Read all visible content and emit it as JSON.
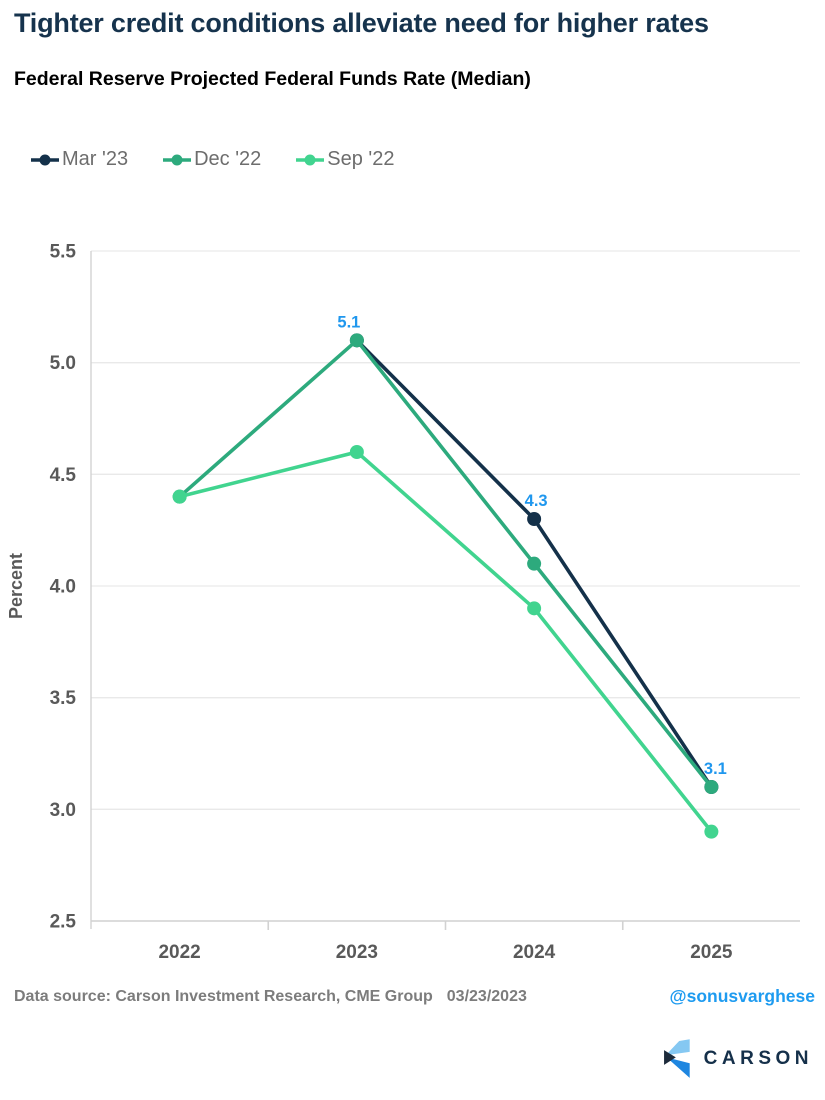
{
  "header": {
    "title": "Tighter credit conditions alleviate need for higher rates",
    "subtitle": "Federal Reserve Projected Federal Funds Rate (Median)"
  },
  "chart_data": {
    "type": "line",
    "categories": [
      "2022",
      "2023",
      "2024",
      "2025"
    ],
    "series": [
      {
        "name": "Mar '23",
        "color": "#14314a",
        "values": [
          null,
          5.1,
          4.3,
          3.1
        ],
        "data_labels": [
          "",
          "5.1",
          "4.3",
          "3.1"
        ],
        "label_color": "#1f97ee"
      },
      {
        "name": "Dec '22",
        "color": "#2daa7d",
        "values": [
          4.4,
          5.1,
          4.1,
          3.1
        ]
      },
      {
        "name": "Sep '22",
        "color": "#41d48f",
        "values": [
          4.4,
          4.6,
          3.9,
          2.9
        ]
      }
    ],
    "xlabel": "",
    "ylabel": "Percent",
    "ylim": [
      2.5,
      5.5
    ],
    "yticks": [
      "5.5",
      "5.0",
      "4.5",
      "4.0",
      "3.5",
      "3.0",
      "2.5"
    ],
    "grid": "horizontal-only",
    "legend_position": "top-left",
    "marker": "circle"
  },
  "footer": {
    "source": "Data source: Carson Investment Research, CME Group",
    "date": "03/23/2023",
    "handle": "@sonusvarghese"
  },
  "brand": {
    "name": "CARSON",
    "text_color": "#15304a",
    "icon_colors": {
      "light": "#85c8f2",
      "mid": "#1e86e0",
      "dark": "#1d2b3b"
    }
  },
  "colors": {
    "title_navy": "#16334d",
    "subtitle_color": "#000000",
    "legend_text": "#6d6d6d",
    "axis_text": "#595959",
    "axis_line": "#d2d2d2",
    "gridline": "#e9e9e9",
    "data_label_blue": "#1f97ee",
    "footer_gray": "#7c7c7c",
    "handle_blue": "#1e9bf0"
  }
}
